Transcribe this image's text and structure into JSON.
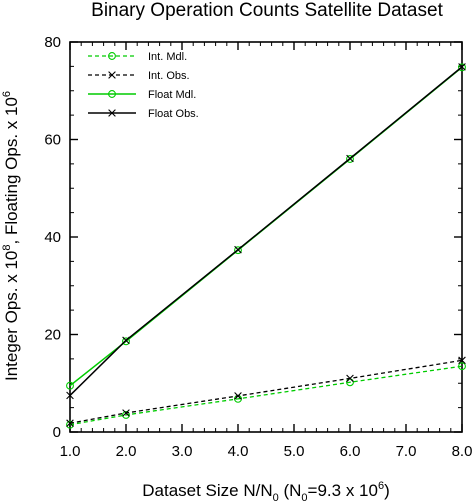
{
  "chart_data": {
    "type": "line",
    "title": "Binary Operation Counts Satellite Dataset",
    "xlabel": {
      "main": "Dataset Size N/N",
      "sub": "0",
      "paren_open": " (N",
      "paren_sub": "0",
      "mid": "=9.3 x 10",
      "sup": "6",
      "close": ")"
    },
    "ylabel": {
      "part1": "Integer Ops. x 10",
      "sup1": "8",
      "part2": ", Floating Ops. x 10",
      "sup2": "6"
    },
    "xlim": [
      1.0,
      8.0
    ],
    "ylim": [
      0,
      80
    ],
    "xticks": [
      1.0,
      2.0,
      3.0,
      4.0,
      5.0,
      6.0,
      7.0,
      8.0
    ],
    "xtick_labels": [
      "1.0",
      "2.0",
      "3.0",
      "4.0",
      "5.0",
      "6.0",
      "7.0",
      "8.0"
    ],
    "yticks": [
      0,
      20,
      40,
      60,
      80
    ],
    "ytick_labels": [
      "0",
      "20",
      "40",
      "60",
      "80"
    ],
    "grid": false,
    "legend_position": "top-left",
    "series": [
      {
        "name": "Int. Mdl.",
        "color": "#00cc00",
        "dash": true,
        "marker": "circle",
        "x": [
          1,
          2,
          4,
          6,
          8
        ],
        "y": [
          1.5,
          3.5,
          6.8,
          10.2,
          13.5
        ]
      },
      {
        "name": "Int. Obs.",
        "color": "#000000",
        "dash": true,
        "marker": "x",
        "x": [
          1,
          2,
          4,
          6,
          8
        ],
        "y": [
          1.8,
          3.9,
          7.4,
          11.0,
          14.7
        ]
      },
      {
        "name": "Float Mdl.",
        "color": "#00cc00",
        "dash": false,
        "marker": "circle",
        "x": [
          1,
          2,
          4,
          6,
          8
        ],
        "y": [
          9.5,
          18.6,
          37.3,
          56.0,
          74.8
        ]
      },
      {
        "name": "Float Obs.",
        "color": "#000000",
        "dash": false,
        "marker": "x",
        "x": [
          1,
          2,
          4,
          6,
          8
        ],
        "y": [
          7.5,
          18.8,
          37.4,
          56.1,
          74.9
        ]
      }
    ]
  }
}
